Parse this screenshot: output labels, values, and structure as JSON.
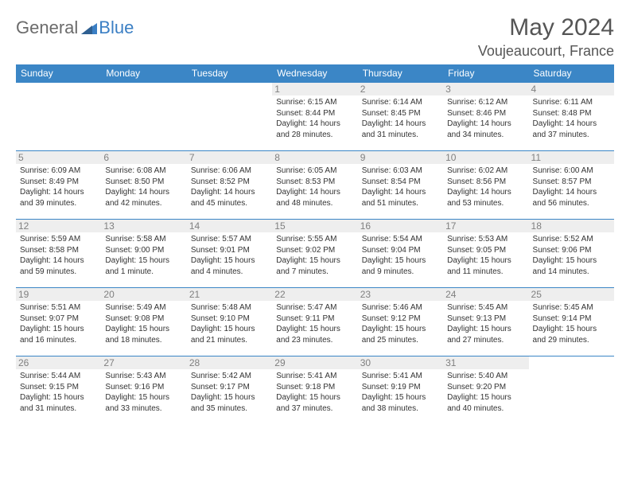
{
  "logo": {
    "general": "General",
    "blue": "Blue"
  },
  "title": {
    "month": "May 2024",
    "location": "Voujeaucourt, France"
  },
  "colors": {
    "header_bg": "#3b86c6",
    "header_text": "#ffffff",
    "row_border": "#3b86c6",
    "daynum_bg": "#eeeeee",
    "daynum_text": "#808080",
    "body_text": "#333333",
    "logo_general": "#6b6b6b",
    "logo_blue": "#3b7fc4",
    "title_color": "#555555"
  },
  "dayHeaders": [
    "Sunday",
    "Monday",
    "Tuesday",
    "Wednesday",
    "Thursday",
    "Friday",
    "Saturday"
  ],
  "weeks": [
    [
      null,
      null,
      null,
      {
        "n": "1",
        "l": [
          "Sunrise: 6:15 AM",
          "Sunset: 8:44 PM",
          "Daylight: 14 hours",
          "and 28 minutes."
        ]
      },
      {
        "n": "2",
        "l": [
          "Sunrise: 6:14 AM",
          "Sunset: 8:45 PM",
          "Daylight: 14 hours",
          "and 31 minutes."
        ]
      },
      {
        "n": "3",
        "l": [
          "Sunrise: 6:12 AM",
          "Sunset: 8:46 PM",
          "Daylight: 14 hours",
          "and 34 minutes."
        ]
      },
      {
        "n": "4",
        "l": [
          "Sunrise: 6:11 AM",
          "Sunset: 8:48 PM",
          "Daylight: 14 hours",
          "and 37 minutes."
        ]
      }
    ],
    [
      {
        "n": "5",
        "l": [
          "Sunrise: 6:09 AM",
          "Sunset: 8:49 PM",
          "Daylight: 14 hours",
          "and 39 minutes."
        ]
      },
      {
        "n": "6",
        "l": [
          "Sunrise: 6:08 AM",
          "Sunset: 8:50 PM",
          "Daylight: 14 hours",
          "and 42 minutes."
        ]
      },
      {
        "n": "7",
        "l": [
          "Sunrise: 6:06 AM",
          "Sunset: 8:52 PM",
          "Daylight: 14 hours",
          "and 45 minutes."
        ]
      },
      {
        "n": "8",
        "l": [
          "Sunrise: 6:05 AM",
          "Sunset: 8:53 PM",
          "Daylight: 14 hours",
          "and 48 minutes."
        ]
      },
      {
        "n": "9",
        "l": [
          "Sunrise: 6:03 AM",
          "Sunset: 8:54 PM",
          "Daylight: 14 hours",
          "and 51 minutes."
        ]
      },
      {
        "n": "10",
        "l": [
          "Sunrise: 6:02 AM",
          "Sunset: 8:56 PM",
          "Daylight: 14 hours",
          "and 53 minutes."
        ]
      },
      {
        "n": "11",
        "l": [
          "Sunrise: 6:00 AM",
          "Sunset: 8:57 PM",
          "Daylight: 14 hours",
          "and 56 minutes."
        ]
      }
    ],
    [
      {
        "n": "12",
        "l": [
          "Sunrise: 5:59 AM",
          "Sunset: 8:58 PM",
          "Daylight: 14 hours",
          "and 59 minutes."
        ]
      },
      {
        "n": "13",
        "l": [
          "Sunrise: 5:58 AM",
          "Sunset: 9:00 PM",
          "Daylight: 15 hours",
          "and 1 minute."
        ]
      },
      {
        "n": "14",
        "l": [
          "Sunrise: 5:57 AM",
          "Sunset: 9:01 PM",
          "Daylight: 15 hours",
          "and 4 minutes."
        ]
      },
      {
        "n": "15",
        "l": [
          "Sunrise: 5:55 AM",
          "Sunset: 9:02 PM",
          "Daylight: 15 hours",
          "and 7 minutes."
        ]
      },
      {
        "n": "16",
        "l": [
          "Sunrise: 5:54 AM",
          "Sunset: 9:04 PM",
          "Daylight: 15 hours",
          "and 9 minutes."
        ]
      },
      {
        "n": "17",
        "l": [
          "Sunrise: 5:53 AM",
          "Sunset: 9:05 PM",
          "Daylight: 15 hours",
          "and 11 minutes."
        ]
      },
      {
        "n": "18",
        "l": [
          "Sunrise: 5:52 AM",
          "Sunset: 9:06 PM",
          "Daylight: 15 hours",
          "and 14 minutes."
        ]
      }
    ],
    [
      {
        "n": "19",
        "l": [
          "Sunrise: 5:51 AM",
          "Sunset: 9:07 PM",
          "Daylight: 15 hours",
          "and 16 minutes."
        ]
      },
      {
        "n": "20",
        "l": [
          "Sunrise: 5:49 AM",
          "Sunset: 9:08 PM",
          "Daylight: 15 hours",
          "and 18 minutes."
        ]
      },
      {
        "n": "21",
        "l": [
          "Sunrise: 5:48 AM",
          "Sunset: 9:10 PM",
          "Daylight: 15 hours",
          "and 21 minutes."
        ]
      },
      {
        "n": "22",
        "l": [
          "Sunrise: 5:47 AM",
          "Sunset: 9:11 PM",
          "Daylight: 15 hours",
          "and 23 minutes."
        ]
      },
      {
        "n": "23",
        "l": [
          "Sunrise: 5:46 AM",
          "Sunset: 9:12 PM",
          "Daylight: 15 hours",
          "and 25 minutes."
        ]
      },
      {
        "n": "24",
        "l": [
          "Sunrise: 5:45 AM",
          "Sunset: 9:13 PM",
          "Daylight: 15 hours",
          "and 27 minutes."
        ]
      },
      {
        "n": "25",
        "l": [
          "Sunrise: 5:45 AM",
          "Sunset: 9:14 PM",
          "Daylight: 15 hours",
          "and 29 minutes."
        ]
      }
    ],
    [
      {
        "n": "26",
        "l": [
          "Sunrise: 5:44 AM",
          "Sunset: 9:15 PM",
          "Daylight: 15 hours",
          "and 31 minutes."
        ]
      },
      {
        "n": "27",
        "l": [
          "Sunrise: 5:43 AM",
          "Sunset: 9:16 PM",
          "Daylight: 15 hours",
          "and 33 minutes."
        ]
      },
      {
        "n": "28",
        "l": [
          "Sunrise: 5:42 AM",
          "Sunset: 9:17 PM",
          "Daylight: 15 hours",
          "and 35 minutes."
        ]
      },
      {
        "n": "29",
        "l": [
          "Sunrise: 5:41 AM",
          "Sunset: 9:18 PM",
          "Daylight: 15 hours",
          "and 37 minutes."
        ]
      },
      {
        "n": "30",
        "l": [
          "Sunrise: 5:41 AM",
          "Sunset: 9:19 PM",
          "Daylight: 15 hours",
          "and 38 minutes."
        ]
      },
      {
        "n": "31",
        "l": [
          "Sunrise: 5:40 AM",
          "Sunset: 9:20 PM",
          "Daylight: 15 hours",
          "and 40 minutes."
        ]
      },
      null
    ]
  ]
}
